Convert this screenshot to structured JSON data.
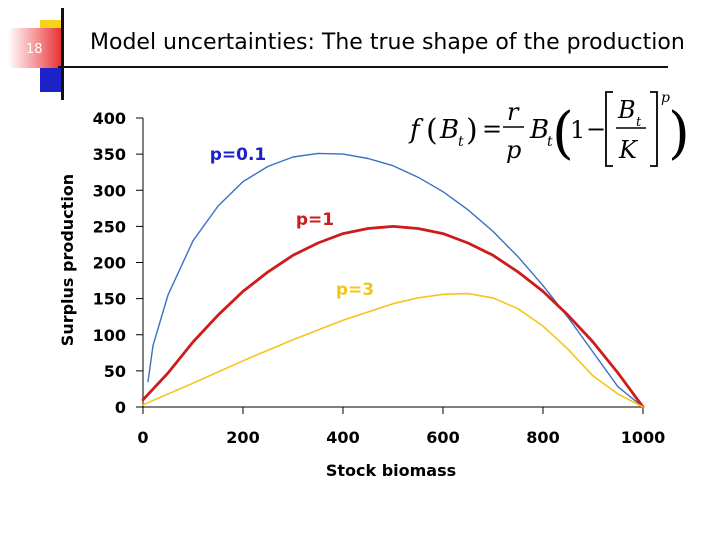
{
  "slide": {
    "number": "18",
    "title": "Model uncertainties: The true shape of the production"
  },
  "colors": {
    "accent_yellow": "#f7d21b",
    "accent_red": "#e8262a",
    "accent_blue": "#1a22c8"
  },
  "equation": {
    "f": "f",
    "B": "B",
    "t": "t",
    "r": "r",
    "p": "p",
    "K": "K",
    "one": "1",
    "eq_sign": "=",
    "minus": "−",
    "open_paren": "(",
    "close_paren": ")"
  },
  "chart_data": {
    "type": "line",
    "xlabel": "Stock biomass",
    "ylabel": "Surplus production",
    "xlim": [
      0,
      1000
    ],
    "ylim": [
      0,
      400
    ],
    "x_ticks": [
      0,
      200,
      400,
      600,
      800,
      1000
    ],
    "y_ticks": [
      0,
      50,
      100,
      150,
      200,
      250,
      300,
      350,
      400
    ],
    "grid": false,
    "legend": "none",
    "series": [
      {
        "name": "p=0.1",
        "color": "#3a6fc4",
        "label_color": "#1a22c8",
        "x": [
          10,
          20,
          50,
          100,
          150,
          200,
          250,
          300,
          350,
          400,
          450,
          500,
          550,
          600,
          650,
          700,
          750,
          800,
          850,
          900,
          950,
          1000
        ],
        "y": [
          35,
          85,
          155,
          230,
          278,
          312,
          333,
          346,
          351,
          350,
          344,
          334,
          318,
          298,
          273,
          243,
          208,
          168,
          124,
          76,
          28,
          0
        ]
      },
      {
        "name": "p=1",
        "color": "#cc1c1c",
        "label_color": "#cc1c1c",
        "x": [
          0,
          50,
          100,
          150,
          200,
          250,
          300,
          350,
          400,
          450,
          500,
          550,
          600,
          650,
          700,
          750,
          800,
          850,
          900,
          950,
          1000
        ],
        "y": [
          10,
          47,
          90,
          127,
          160,
          187,
          210,
          227,
          240,
          247,
          250,
          247,
          240,
          227,
          210,
          187,
          160,
          127,
          90,
          47,
          0
        ]
      },
      {
        "name": "p=3",
        "color": "#f5c518",
        "label_color": "#f5c518",
        "x": [
          0,
          100,
          200,
          300,
          400,
          500,
          550,
          600,
          650,
          700,
          750,
          800,
          850,
          900,
          950,
          1000
        ],
        "y": [
          3,
          33,
          64,
          93,
          120,
          143,
          151,
          156,
          157,
          151,
          136,
          112,
          80,
          43,
          18,
          0
        ]
      }
    ]
  }
}
